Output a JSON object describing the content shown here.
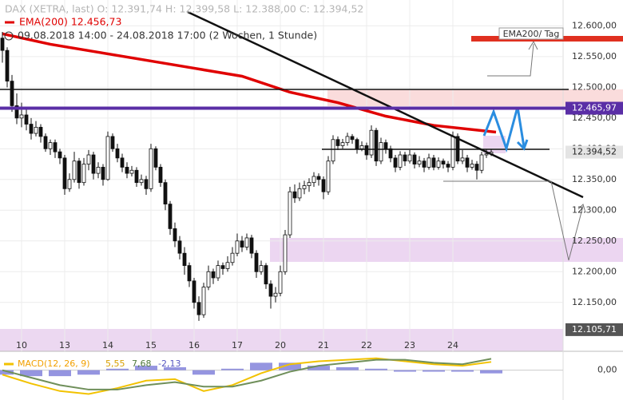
{
  "header": {
    "instrument": "DAX (XETRA, last)  O: 12.391,74  H: 12.399,58  L: 12.388,00  C: 12.394,52",
    "ema": "EMA(200) 12.456,73",
    "period": "09.08.2018 14:00 - 24.08.2018 17:00   (2 Wochen, 1 Stunde)"
  },
  "annotation": "EMA200/ Tag",
  "chart_data": [
    {
      "type": "candlestick",
      "up_color": "#ffffff",
      "down_color": "#111111",
      "grid": true,
      "candles": [
        [
          12580,
          12590,
          12540,
          12560
        ],
        [
          12560,
          12565,
          12500,
          12510
        ],
        [
          12510,
          12520,
          12460,
          12470
        ],
        [
          12470,
          12490,
          12440,
          12450
        ],
        [
          12450,
          12475,
          12435,
          12455
        ],
        [
          12455,
          12465,
          12430,
          12440
        ],
        [
          12440,
          12450,
          12415,
          12425
        ],
        [
          12425,
          12445,
          12420,
          12435
        ],
        [
          12435,
          12440,
          12410,
          12420
        ],
        [
          12420,
          12425,
          12395,
          12400
        ],
        [
          12400,
          12415,
          12390,
          12410
        ],
        [
          12410,
          12415,
          12385,
          12395
        ],
        [
          12395,
          12400,
          12375,
          12385
        ],
        [
          12385,
          12390,
          12325,
          12335
        ],
        [
          12335,
          12360,
          12330,
          12350
        ],
        [
          12350,
          12395,
          12345,
          12380
        ],
        [
          12380,
          12385,
          12335,
          12345
        ],
        [
          12345,
          12385,
          12340,
          12375
        ],
        [
          12375,
          12398,
          12365,
          12390
        ],
        [
          12390,
          12395,
          12350,
          12360
        ],
        [
          12360,
          12378,
          12352,
          12370
        ],
        [
          12370,
          12375,
          12340,
          12350
        ],
        [
          12350,
          12428,
          12348,
          12420
        ],
        [
          12420,
          12425,
          12395,
          12400
        ],
        [
          12400,
          12408,
          12378,
          12385
        ],
        [
          12385,
          12392,
          12362,
          12370
        ],
        [
          12370,
          12378,
          12352,
          12360
        ],
        [
          12360,
          12372,
          12355,
          12365
        ],
        [
          12365,
          12370,
          12338,
          12345
        ],
        [
          12345,
          12358,
          12340,
          12350
        ],
        [
          12350,
          12356,
          12325,
          12335
        ],
        [
          12335,
          12408,
          12330,
          12400
        ],
        [
          12400,
          12404,
          12365,
          12370
        ],
        [
          12370,
          12375,
          12338,
          12345
        ],
        [
          12345,
          12350,
          12300,
          12310
        ],
        [
          12310,
          12315,
          12260,
          12270
        ],
        [
          12270,
          12280,
          12240,
          12250
        ],
        [
          12250,
          12258,
          12220,
          12230
        ],
        [
          12230,
          12240,
          12195,
          12210
        ],
        [
          12210,
          12215,
          12175,
          12185
        ],
        [
          12185,
          12190,
          12140,
          12150
        ],
        [
          12150,
          12160,
          12120,
          12130
        ],
        [
          12130,
          12182,
          12125,
          12175
        ],
        [
          12175,
          12210,
          12170,
          12200
        ],
        [
          12200,
          12205,
          12180,
          12190
        ],
        [
          12190,
          12218,
          12185,
          12210
        ],
        [
          12210,
          12215,
          12195,
          12205
        ],
        [
          12205,
          12225,
          12200,
          12215
        ],
        [
          12215,
          12240,
          12210,
          12230
        ],
        [
          12230,
          12262,
          12225,
          12250
        ],
        [
          12250,
          12258,
          12232,
          12240
        ],
        [
          12240,
          12262,
          12235,
          12255
        ],
        [
          12255,
          12260,
          12222,
          12230
        ],
        [
          12230,
          12235,
          12190,
          12200
        ],
        [
          12200,
          12218,
          12195,
          12210
        ],
        [
          12210,
          12214,
          12172,
          12180
        ],
        [
          12180,
          12186,
          12140,
          12160
        ],
        [
          12160,
          12175,
          12150,
          12165
        ],
        [
          12165,
          12210,
          12160,
          12200
        ],
        [
          12200,
          12268,
          12195,
          12260
        ],
        [
          12260,
          12338,
          12255,
          12330
        ],
        [
          12330,
          12342,
          12312,
          12320
        ],
        [
          12320,
          12345,
          12315,
          12335
        ],
        [
          12335,
          12348,
          12326,
          12340
        ],
        [
          12340,
          12352,
          12330,
          12345
        ],
        [
          12345,
          12362,
          12338,
          12355
        ],
        [
          12355,
          12360,
          12340,
          12350
        ],
        [
          12350,
          12355,
          12318,
          12330
        ],
        [
          12330,
          12388,
          12325,
          12380
        ],
        [
          12380,
          12422,
          12375,
          12415
        ],
        [
          12415,
          12420,
          12398,
          12405
        ],
        [
          12405,
          12416,
          12400,
          12410
        ],
        [
          12410,
          12426,
          12405,
          12420
        ],
        [
          12420,
          12424,
          12408,
          12415
        ],
        [
          12415,
          12418,
          12392,
          12400
        ],
        [
          12400,
          12412,
          12396,
          12405
        ],
        [
          12405,
          12410,
          12382,
          12390
        ],
        [
          12390,
          12438,
          12385,
          12430
        ],
        [
          12430,
          12434,
          12372,
          12380
        ],
        [
          12380,
          12418,
          12375,
          12410
        ],
        [
          12410,
          12415,
          12392,
          12400
        ],
        [
          12400,
          12405,
          12378,
          12385
        ],
        [
          12385,
          12390,
          12362,
          12370
        ],
        [
          12370,
          12396,
          12365,
          12390
        ],
        [
          12390,
          12395,
          12372,
          12380
        ],
        [
          12380,
          12398,
          12376,
          12390
        ],
        [
          12390,
          12394,
          12368,
          12375
        ],
        [
          12375,
          12388,
          12370,
          12380
        ],
        [
          12380,
          12385,
          12362,
          12370
        ],
        [
          12370,
          12392,
          12366,
          12385
        ],
        [
          12385,
          12390,
          12365,
          12370
        ],
        [
          12370,
          12386,
          12366,
          12380
        ],
        [
          12380,
          12384,
          12368,
          12375
        ],
        [
          12375,
          12380,
          12362,
          12370
        ],
        [
          12370,
          12428,
          12365,
          12420
        ],
        [
          12420,
          12425,
          12375,
          12380
        ],
        [
          12380,
          12398,
          12375,
          12385
        ],
        [
          12385,
          12390,
          12362,
          12370
        ],
        [
          12370,
          12382,
          12366,
          12375
        ],
        [
          12375,
          12380,
          12350,
          12365
        ],
        [
          12365,
          12395,
          12360,
          12390
        ],
        [
          12390,
          12399.58,
          12385,
          12391.74
        ],
        [
          12391.74,
          12399.58,
          12388,
          12394.52
        ]
      ],
      "ema": {
        "color": "#e00000",
        "x": [
          0,
          10,
          20,
          30,
          40,
          50,
          60,
          70,
          80,
          90,
          103
        ],
        "values": [
          12587,
          12570,
          12557,
          12544,
          12531,
          12518,
          12492,
          12475,
          12453,
          12438,
          12427
        ]
      },
      "xlim": [
        -0.5,
        117
      ],
      "xticks": [
        {
          "value": 4,
          "label": "10"
        },
        {
          "value": 13,
          "label": "13"
        },
        {
          "value": 22,
          "label": "14"
        },
        {
          "value": 31,
          "label": "15"
        },
        {
          "value": 40,
          "label": "16"
        },
        {
          "value": 49,
          "label": "17"
        },
        {
          "value": 58,
          "label": "20"
        },
        {
          "value": 67,
          "label": "21"
        },
        {
          "value": 76,
          "label": "22"
        },
        {
          "value": 85,
          "label": "23"
        },
        {
          "value": 94,
          "label": "24"
        }
      ],
      "ylim": [
        12064,
        12642
      ],
      "yticks": [
        {
          "value": 12600,
          "label": "12.600,00"
        },
        {
          "value": 12550,
          "label": "12.550,00"
        },
        {
          "value": 12500,
          "label": "12.500,00"
        },
        {
          "value": 12450,
          "label": "12.450,00"
        },
        {
          "value": 12400,
          "label": "12.400,00"
        },
        {
          "value": 12350,
          "label": "12.350,00"
        },
        {
          "value": 12300,
          "label": "12.300,00"
        },
        {
          "value": 12250,
          "label": "12.250,00"
        },
        {
          "value": 12200,
          "label": "12.200,00"
        },
        {
          "value": 12150,
          "label": "12.150,00"
        }
      ],
      "levels": [
        {
          "value": 12465.97,
          "label": "12.465,97",
          "color": "#5a2ea6",
          "text_color": "#ffffff"
        },
        {
          "value": 12394.52,
          "label": "12.394,52",
          "color": "#e4e4e4",
          "text_color": "#222222"
        },
        {
          "value": 12105.71,
          "label": "12.105,71",
          "color": "#555555",
          "text_color": "#ffffff"
        }
      ]
    },
    {
      "type": "macd",
      "name": "MACD(12, 26, 9)",
      "value_labels": [
        "5,55",
        "7,68",
        "-2,13"
      ],
      "x": [
        0,
        6,
        12,
        18,
        24,
        30,
        36,
        42,
        48,
        54,
        60,
        66,
        72,
        78,
        84,
        90,
        96,
        102
      ],
      "series": [
        {
          "color": "#f2c200",
          "values": [
            -3,
            -9,
            -14,
            -16,
            -12,
            -7,
            -6,
            -14,
            -10,
            -2,
            4,
            6,
            7,
            8,
            6,
            4,
            3,
            5.55
          ]
        },
        {
          "color": "#6f8f5a",
          "values": [
            0,
            -5,
            -10,
            -13,
            -13,
            -10,
            -8,
            -11,
            -11,
            -7,
            -1,
            3,
            5,
            7,
            7,
            5,
            4,
            7.68
          ]
        },
        {
          "color": "#7a7ad8",
          "values": [
            -3,
            -4,
            -4,
            -3,
            1,
            3,
            2,
            -3,
            1,
            5,
            5,
            3,
            2,
            1,
            -1,
            -1,
            -1,
            -2.13
          ]
        }
      ],
      "ylim": [
        -20,
        10
      ],
      "yticks": [
        {
          "value": 0,
          "label": "0,00"
        }
      ]
    }
  ]
}
